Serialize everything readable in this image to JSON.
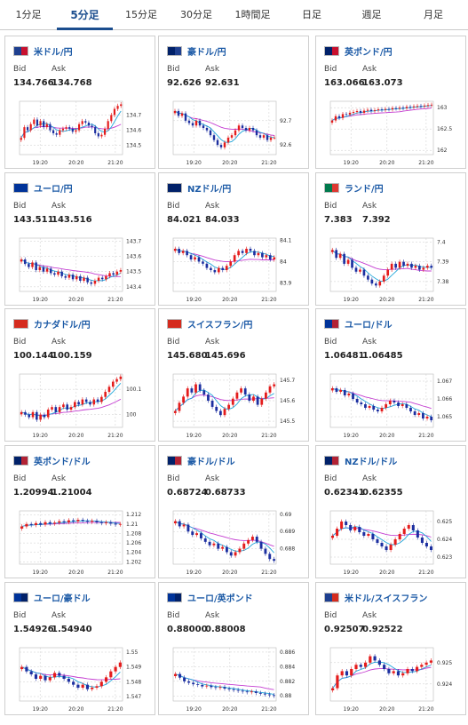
{
  "tabs": [
    {
      "label": "1分足",
      "active": false
    },
    {
      "label": "5分足",
      "active": true
    },
    {
      "label": "15分足",
      "active": false
    },
    {
      "label": "30分足",
      "active": false
    },
    {
      "label": "1時間足",
      "active": false
    },
    {
      "label": "日足",
      "active": false
    },
    {
      "label": "週足",
      "active": false
    },
    {
      "label": "月足",
      "active": false
    }
  ],
  "labels": {
    "bid": "Bid",
    "ask": "Ask"
  },
  "colors": {
    "up": "#e41c1c",
    "down": "#1c2fa0",
    "ma_short": "#22a6d9",
    "ma_long": "#c43dd1",
    "tab_active": "#1b4d8e",
    "pair_text": "#1c5aa6"
  },
  "cards": [
    {
      "pair": "米ドル/円",
      "flag": [
        "#1e3f8f",
        "#c8102e"
      ],
      "bid": "134.766",
      "ask": "134.768",
      "chart_data": {
        "type": "candlestick",
        "x_ticks": [
          "19:20",
          "20:20",
          "21:20"
        ],
        "y_ticks": [
          "134.7",
          "134.6",
          "134.5"
        ],
        "ylim": [
          134.44,
          134.79
        ],
        "close": [
          134.55,
          134.62,
          134.6,
          134.64,
          134.67,
          134.63,
          134.66,
          134.62,
          134.64,
          134.6,
          134.58,
          134.57,
          134.6,
          134.61,
          134.62,
          134.61,
          134.59,
          134.6,
          134.64,
          134.66,
          134.65,
          134.63,
          134.62,
          134.58,
          134.56,
          134.57,
          134.61,
          134.66,
          134.7,
          134.74,
          134.76,
          134.77
        ]
      }
    },
    {
      "pair": "豪ドル/円",
      "flag": [
        "#012169",
        "#1e3f8f"
      ],
      "bid": "92.626",
      "ask": "92.631",
      "chart_data": {
        "type": "candlestick",
        "x_ticks": [
          "19:20",
          "20:20",
          "21:20"
        ],
        "y_ticks": [
          "92.7",
          "92.6"
        ],
        "ylim": [
          92.56,
          92.78
        ],
        "close": [
          92.74,
          92.72,
          92.73,
          92.7,
          92.69,
          92.68,
          92.7,
          92.68,
          92.67,
          92.66,
          92.64,
          92.62,
          92.6,
          92.59,
          92.61,
          92.63,
          92.64,
          92.66,
          92.68,
          92.67,
          92.66,
          92.67,
          92.66,
          92.64,
          92.63,
          92.64,
          92.62,
          92.63,
          92.63
        ]
      }
    },
    {
      "pair": "英ポンド/円",
      "flag": [
        "#012169",
        "#c8102e"
      ],
      "bid": "163.066",
      "ask": "163.073",
      "chart_data": {
        "type": "candlestick",
        "x_ticks": [
          "19:20",
          "20:20",
          "21:20"
        ],
        "y_ticks": [
          "163",
          "162.5",
          "162"
        ],
        "ylim": [
          161.9,
          163.15
        ],
        "close": [
          162.7,
          162.8,
          162.76,
          162.85,
          162.84,
          162.88,
          162.9,
          162.92,
          162.88,
          162.93,
          162.95,
          162.92,
          162.94,
          162.96,
          162.95,
          162.97,
          162.96,
          162.99,
          162.98,
          163.0,
          162.99,
          163.02,
          163.01,
          163.03,
          163.04,
          163.03,
          163.05,
          163.06,
          163.07
        ]
      }
    },
    {
      "pair": "ユーロ/円",
      "flag": [
        "#003399",
        "#003399"
      ],
      "bid": "143.511",
      "ask": "143.516",
      "chart_data": {
        "type": "candlestick",
        "x_ticks": [
          "19:20",
          "20:20",
          "21:20"
        ],
        "y_ticks": [
          "143.7",
          "143.6",
          "143.5",
          "143.4"
        ],
        "ylim": [
          143.37,
          143.72
        ],
        "close": [
          143.58,
          143.55,
          143.53,
          143.56,
          143.51,
          143.53,
          143.5,
          143.52,
          143.49,
          143.48,
          143.5,
          143.47,
          143.46,
          143.48,
          143.45,
          143.47,
          143.44,
          143.46,
          143.43,
          143.42,
          143.44,
          143.46,
          143.45,
          143.47,
          143.49,
          143.48,
          143.5,
          143.51
        ]
      }
    },
    {
      "pair": "NZドル/円",
      "flag": [
        "#012169",
        "#012169"
      ],
      "bid": "84.021",
      "ask": "84.033",
      "chart_data": {
        "type": "candlestick",
        "x_ticks": [
          "19:20",
          "20:20",
          "21:20"
        ],
        "y_ticks": [
          "84.1",
          "84",
          "83.9"
        ],
        "ylim": [
          83.86,
          84.11
        ],
        "close": [
          84.06,
          84.04,
          84.05,
          84.03,
          84.01,
          84.02,
          84.0,
          83.99,
          83.97,
          83.96,
          83.95,
          83.97,
          83.96,
          83.98,
          84.0,
          84.03,
          84.05,
          84.04,
          84.06,
          84.05,
          84.03,
          84.04,
          84.02,
          84.03,
          84.01,
          84.02
        ]
      }
    },
    {
      "pair": "ランド/円",
      "flag": [
        "#007a4d",
        "#de3831"
      ],
      "bid": "7.383",
      "ask": "7.392",
      "chart_data": {
        "type": "candlestick",
        "x_ticks": [
          "19:20",
          "20:20",
          "21:20"
        ],
        "y_ticks": [
          "7.4",
          "7.39",
          "7.38"
        ],
        "ylim": [
          7.375,
          7.402
        ],
        "close": [
          7.396,
          7.392,
          7.394,
          7.389,
          7.391,
          7.387,
          7.385,
          7.386,
          7.383,
          7.381,
          7.379,
          7.378,
          7.38,
          7.383,
          7.386,
          7.389,
          7.387,
          7.39,
          7.388,
          7.389,
          7.387,
          7.388,
          7.386,
          7.387,
          7.388,
          7.387
        ]
      }
    },
    {
      "pair": "カナダドル/円",
      "flag": [
        "#d52b1e",
        "#d52b1e"
      ],
      "bid": "100.144",
      "ask": "100.159",
      "chart_data": {
        "type": "candlestick",
        "x_ticks": [
          "19:20",
          "20:20",
          "21:20"
        ],
        "y_ticks": [
          "100.1",
          "100"
        ],
        "ylim": [
          99.95,
          100.16
        ],
        "close": [
          100.01,
          100.0,
          99.99,
          100.01,
          99.98,
          100.0,
          99.99,
          100.02,
          100.03,
          100.01,
          100.03,
          100.04,
          100.02,
          100.03,
          100.05,
          100.04,
          100.06,
          100.05,
          100.04,
          100.06,
          100.05,
          100.07,
          100.09,
          100.11,
          100.13,
          100.14,
          100.15
        ]
      }
    },
    {
      "pair": "スイスフラン/円",
      "flag": [
        "#d52b1e",
        "#d52b1e"
      ],
      "bid": "145.680",
      "ask": "145.696",
      "chart_data": {
        "type": "candlestick",
        "x_ticks": [
          "19:20",
          "20:20",
          "21:20"
        ],
        "y_ticks": [
          "145.7",
          "145.6",
          "145.5"
        ],
        "ylim": [
          145.47,
          145.73
        ],
        "close": [
          145.55,
          145.59,
          145.62,
          145.66,
          145.64,
          145.68,
          145.65,
          145.63,
          145.6,
          145.57,
          145.55,
          145.53,
          145.56,
          145.58,
          145.61,
          145.64,
          145.66,
          145.63,
          145.6,
          145.62,
          145.58,
          145.61,
          145.64,
          145.67,
          145.68
        ]
      }
    },
    {
      "pair": "ユーロ/ドル",
      "flag": [
        "#003399",
        "#b22234"
      ],
      "bid": "1.06481",
      "ask": "1.06485",
      "chart_data": {
        "type": "candlestick",
        "x_ticks": [
          "19:20",
          "20:20",
          "21:20"
        ],
        "y_ticks": [
          "1.067",
          "1.066",
          "1.065"
        ],
        "ylim": [
          1.0644,
          1.0674
        ],
        "close": [
          1.0666,
          1.0664,
          1.0665,
          1.0662,
          1.0663,
          1.066,
          1.0658,
          1.0657,
          1.0655,
          1.0656,
          1.0654,
          1.0653,
          1.0655,
          1.0657,
          1.0659,
          1.0658,
          1.0656,
          1.0657,
          1.0655,
          1.0653,
          1.0651,
          1.0652,
          1.0649,
          1.065,
          1.0648
        ]
      }
    },
    {
      "pair": "英ポンド/ドル",
      "flag": [
        "#012169",
        "#b22234"
      ],
      "bid": "1.20994",
      "ask": "1.21004",
      "chart_data": {
        "type": "candlestick",
        "x_ticks": [
          "19:20",
          "20:20",
          "21:20"
        ],
        "y_ticks": [
          "1.212",
          "1.21",
          "1.208",
          "1.206",
          "1.204",
          "1.202"
        ],
        "ylim": [
          1.2015,
          1.2128
        ],
        "close": [
          1.2095,
          1.21,
          1.2098,
          1.2102,
          1.2099,
          1.2104,
          1.2101,
          1.2103,
          1.2106,
          1.2104,
          1.2108,
          1.2106,
          1.2109,
          1.2107,
          1.2105,
          1.2107,
          1.2104,
          1.2102,
          1.2104,
          1.2101,
          1.2099,
          1.21
        ]
      }
    },
    {
      "pair": "豪ドル/ドル",
      "flag": [
        "#012169",
        "#b22234"
      ],
      "bid": "0.68724",
      "ask": "0.68733",
      "chart_data": {
        "type": "candlestick",
        "x_ticks": [
          "19:20",
          "20:20",
          "21:20"
        ],
        "y_ticks": [
          "0.69",
          "0.689",
          "0.688"
        ],
        "ylim": [
          0.6871,
          0.6902
        ],
        "close": [
          0.6896,
          0.6893,
          0.6894,
          0.689,
          0.6888,
          0.6889,
          0.6886,
          0.6884,
          0.6882,
          0.6883,
          0.688,
          0.6881,
          0.6878,
          0.6876,
          0.6878,
          0.688,
          0.6883,
          0.6885,
          0.6887,
          0.6884,
          0.688,
          0.6877,
          0.6874,
          0.6873
        ]
      }
    },
    {
      "pair": "NZドル/ドル",
      "flag": [
        "#012169",
        "#b22234"
      ],
      "bid": "0.62341",
      "ask": "0.62355",
      "chart_data": {
        "type": "candlestick",
        "x_ticks": [
          "19:20",
          "20:20",
          "21:20"
        ],
        "y_ticks": [
          "0.625",
          "0.624",
          "0.623"
        ],
        "ylim": [
          0.6226,
          0.6256
        ],
        "close": [
          0.6242,
          0.6246,
          0.625,
          0.6248,
          0.6245,
          0.6247,
          0.6244,
          0.6242,
          0.6243,
          0.624,
          0.6238,
          0.6236,
          0.6234,
          0.6237,
          0.624,
          0.6243,
          0.6246,
          0.6248,
          0.6245,
          0.6241,
          0.6238,
          0.6236,
          0.6234
        ]
      }
    },
    {
      "pair": "ユーロ/豪ドル",
      "flag": [
        "#003399",
        "#012169"
      ],
      "bid": "1.54926",
      "ask": "1.54940",
      "chart_data": {
        "type": "candlestick",
        "x_ticks": [
          "19:20",
          "20:20",
          "21:20"
        ],
        "y_ticks": [
          "1.55",
          "1.549",
          "1.548",
          "1.547"
        ],
        "ylim": [
          1.5467,
          1.5503
        ],
        "close": [
          1.549,
          1.5487,
          1.5485,
          1.5482,
          1.5484,
          1.5481,
          1.5483,
          1.5486,
          1.5484,
          1.5482,
          1.548,
          1.5478,
          1.5476,
          1.5478,
          1.5475,
          1.5476,
          1.5477,
          1.548,
          1.5483,
          1.5487,
          1.549,
          1.5493
        ]
      }
    },
    {
      "pair": "ユーロ/英ポンド",
      "flag": [
        "#003399",
        "#012169"
      ],
      "bid": "0.88000",
      "ask": "0.88008",
      "chart_data": {
        "type": "candlestick",
        "x_ticks": [
          "19:20",
          "20:20",
          "21:20"
        ],
        "y_ticks": [
          "0.886",
          "0.884",
          "0.882",
          "0.88"
        ],
        "ylim": [
          0.8793,
          0.8866
        ],
        "close": [
          0.883,
          0.8825,
          0.882,
          0.8818,
          0.8816,
          0.8815,
          0.8813,
          0.8814,
          0.8812,
          0.8811,
          0.8812,
          0.881,
          0.8809,
          0.8808,
          0.8807,
          0.8806,
          0.8805,
          0.8806,
          0.8804,
          0.8803,
          0.8802,
          0.8801,
          0.88
        ]
      }
    },
    {
      "pair": "米ドル/スイスフラン",
      "flag": [
        "#1e3f8f",
        "#d52b1e"
      ],
      "bid": "0.92507",
      "ask": "0.92522",
      "chart_data": {
        "type": "candlestick",
        "x_ticks": [
          "19:20",
          "20:20",
          "21:20"
        ],
        "y_ticks": [
          "0.925",
          "0.924"
        ],
        "ylim": [
          0.9232,
          0.9257
        ],
        "close": [
          0.9238,
          0.9244,
          0.9246,
          0.9244,
          0.9247,
          0.9249,
          0.9248,
          0.925,
          0.9253,
          0.9251,
          0.9249,
          0.9247,
          0.9245,
          0.9246,
          0.9244,
          0.9245,
          0.9247,
          0.9246,
          0.9248,
          0.9249,
          0.925,
          0.9251
        ]
      }
    }
  ]
}
